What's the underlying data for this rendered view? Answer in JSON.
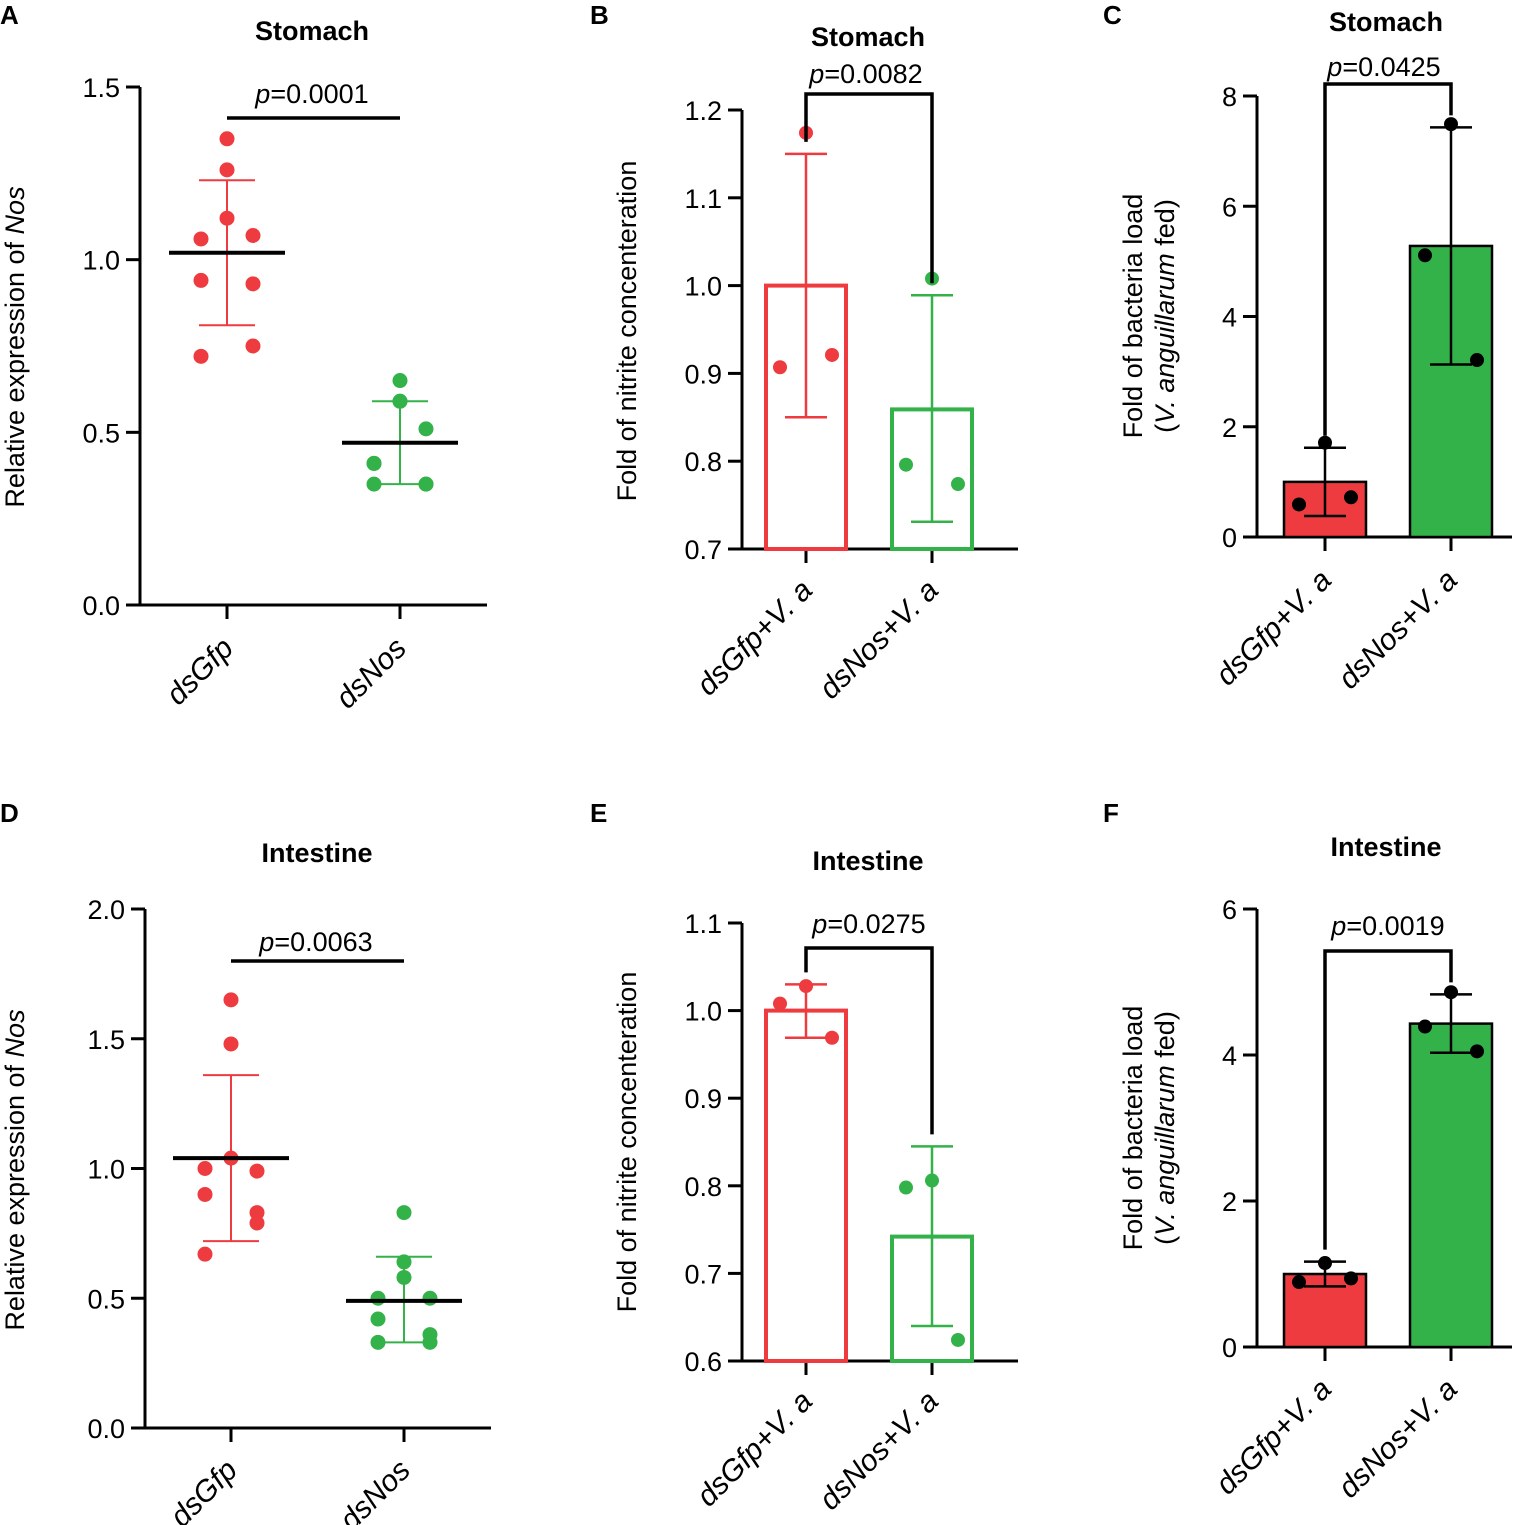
{
  "figure": {
    "colors": {
      "red": "#ee3b3f",
      "green": "#34b24a",
      "black": "#000000"
    }
  },
  "chart_data": [
    {
      "panel": "A",
      "type": "scatter",
      "title": "Stomach",
      "ylabel_prefix": "Relative expression of ",
      "ylabel_italic": "Nos",
      "ylabel_suffix": "",
      "ylim": [
        0,
        1.5
      ],
      "yticks": [
        0.0,
        0.5,
        1.0,
        1.5
      ],
      "tick_labels": [
        "0.0",
        "0.5",
        "1.0",
        "1.5"
      ],
      "categories": [
        "dsGfp",
        "dsNos"
      ],
      "series": [
        {
          "name": "dsGfp",
          "color": "red",
          "mean": 1.02,
          "sd_low": 0.81,
          "sd_high": 1.23,
          "points": [
            1.35,
            1.26,
            1.12,
            1.07,
            1.06,
            0.94,
            0.93,
            0.75,
            0.72
          ]
        },
        {
          "name": "dsNos",
          "color": "green",
          "mean": 0.47,
          "sd_low": 0.35,
          "sd_high": 0.59,
          "points": [
            0.65,
            0.59,
            0.59,
            0.51,
            0.41,
            0.41,
            0.35,
            0.35,
            0.35
          ]
        }
      ],
      "p_label_italic": "p",
      "p_value": "=0.0001"
    },
    {
      "panel": "B",
      "type": "bar",
      "title": "Stomach",
      "ylabel_prefix": "Fold of nitrite concenteration",
      "ylabel_italic": "",
      "ylabel_suffix": "",
      "ylim": [
        0.7,
        1.2
      ],
      "yticks": [
        0.7,
        0.8,
        0.9,
        1.0,
        1.1,
        1.2
      ],
      "tick_labels": [
        "0.7",
        "0.8",
        "0.9",
        "1.0",
        "1.1",
        "1.2"
      ],
      "categories": [
        "dsGfp+V. a",
        "dsNos+V. a"
      ],
      "series": [
        {
          "name": "dsGfp+V. a",
          "color": "red",
          "mean": 1.0,
          "sd_low": 0.85,
          "sd_high": 1.15,
          "points": [
            1.174,
            0.907,
            0.921
          ]
        },
        {
          "name": "dsNos+V. a",
          "color": "green",
          "mean": 0.859,
          "sd_low": 0.731,
          "sd_high": 0.989,
          "points": [
            1.008,
            0.796,
            0.774
          ]
        }
      ],
      "p_label_italic": "p",
      "p_value": "=0.0082"
    },
    {
      "panel": "C",
      "type": "bar",
      "title": "Stomach",
      "ylabel_prefix": "Fold of bacteria load",
      "ylabel2_prefix": "(",
      "ylabel_italic": "V. anguillarum",
      "ylabel_suffix": " fed)",
      "ylim": [
        0,
        8
      ],
      "yticks": [
        0,
        2,
        4,
        6,
        8
      ],
      "tick_labels": [
        "0",
        "2",
        "4",
        "6",
        "8"
      ],
      "categories": [
        "dsGfp+V. a",
        "dsNos+V. a"
      ],
      "series": [
        {
          "name": "dsGfp+V. a",
          "color": "red",
          "mean": 1.0,
          "sd_low": 0.38,
          "sd_high": 1.62,
          "points": [
            1.71,
            0.59,
            0.72
          ]
        },
        {
          "name": "dsNos+V. a",
          "color": "green",
          "mean": 5.28,
          "sd_low": 3.13,
          "sd_high": 7.43,
          "points": [
            7.49,
            5.11,
            3.21
          ]
        }
      ],
      "p_label_italic": "p",
      "p_value": "=0.0425"
    },
    {
      "panel": "D",
      "type": "scatter",
      "title": "Intestine",
      "ylabel_prefix": "Relative expression of ",
      "ylabel_italic": "Nos",
      "ylabel_suffix": "",
      "ylim": [
        0,
        2.0
      ],
      "yticks": [
        0.0,
        0.5,
        1.0,
        1.5,
        2.0
      ],
      "tick_labels": [
        "0.0",
        "0.5",
        "1.0",
        "1.5",
        "2.0"
      ],
      "categories": [
        "dsGfp",
        "dsNos"
      ],
      "series": [
        {
          "name": "dsGfp",
          "color": "red",
          "mean": 1.04,
          "sd_low": 0.72,
          "sd_high": 1.36,
          "points": [
            1.65,
            1.48,
            1.04,
            0.99,
            1.0,
            0.9,
            0.83,
            0.79,
            0.67
          ]
        },
        {
          "name": "dsNos",
          "color": "green",
          "mean": 0.49,
          "sd_low": 0.33,
          "sd_high": 0.66,
          "points": [
            0.83,
            0.64,
            0.58,
            0.5,
            0.5,
            0.42,
            0.36,
            0.33,
            0.33
          ]
        }
      ],
      "p_label_italic": "p",
      "p_value": "=0.0063"
    },
    {
      "panel": "E",
      "type": "bar",
      "title": "Intestine",
      "ylabel_prefix": "Fold of nitrite concenteration",
      "ylabel_italic": "",
      "ylabel_suffix": "",
      "ylim": [
        0.6,
        1.1
      ],
      "yticks": [
        0.6,
        0.7,
        0.8,
        0.9,
        1.0,
        1.1
      ],
      "tick_labels": [
        "0.6",
        "0.7",
        "0.8",
        "0.9",
        "1.0",
        "1.1"
      ],
      "categories": [
        "dsGfp+V. a",
        "dsNos+V. a"
      ],
      "series": [
        {
          "name": "dsGfp+V. a",
          "color": "red",
          "mean": 1.0,
          "sd_low": 0.969,
          "sd_high": 1.03,
          "points": [
            1.028,
            1.008,
            0.969
          ]
        },
        {
          "name": "dsNos+V. a",
          "color": "green",
          "mean": 0.742,
          "sd_low": 0.64,
          "sd_high": 0.845,
          "points": [
            0.806,
            0.798,
            0.624
          ]
        }
      ],
      "p_label_italic": "p",
      "p_value": "=0.0275"
    },
    {
      "panel": "F",
      "type": "bar",
      "title": "Intestine",
      "ylabel_prefix": "Fold of bacteria load",
      "ylabel2_prefix": "(",
      "ylabel_italic": "V. anguillarum",
      "ylabel_suffix": " fed)",
      "ylim": [
        0,
        6
      ],
      "yticks": [
        0,
        2,
        4,
        6
      ],
      "tick_labels": [
        "0",
        "2",
        "4",
        "6"
      ],
      "categories": [
        "dsGfp+V. a",
        "dsNos+V. a"
      ],
      "series": [
        {
          "name": "dsGfp+V. a",
          "color": "red",
          "mean": 1.0,
          "sd_low": 0.83,
          "sd_high": 1.17,
          "points": [
            1.15,
            0.89,
            0.94
          ]
        },
        {
          "name": "dsNos+V. a",
          "color": "green",
          "mean": 4.43,
          "sd_low": 4.03,
          "sd_high": 4.83,
          "points": [
            4.86,
            4.39,
            4.05
          ]
        }
      ],
      "p_label_italic": "p",
      "p_value": "=0.0019"
    }
  ]
}
